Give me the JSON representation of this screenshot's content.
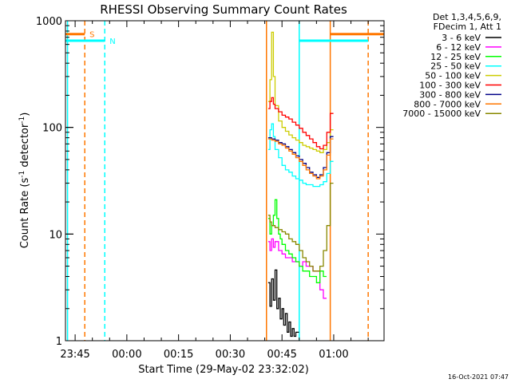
{
  "chart_data": {
    "type": "line",
    "title": "RHESSI Observing Summary Count Rates",
    "xlabel": "Start Time (29-May-02 23:32:02)",
    "ylabel_prefix": "Count Rate (s",
    "ylabel_sup1": "-1",
    "ylabel_mid": " detector",
    "ylabel_sup2": "-1",
    "ylabel_suffix": ")",
    "yscale": "log",
    "ylim": [
      1,
      1000
    ],
    "xlim_minutes": [
      -17.8,
      74.6
    ],
    "x_tick_minutes": [
      -15,
      0,
      15,
      30,
      45,
      60
    ],
    "x_tick_labels": [
      "23:45",
      "00:00",
      "00:15",
      "00:30",
      "00:45",
      "01:00"
    ],
    "y_tick_values": [
      1,
      10,
      100,
      1000
    ],
    "y_tick_labels": [
      "1",
      "10",
      "100",
      "1000"
    ],
    "timestamp": "16-Oct-2021 07:47",
    "legend_header": [
      "Det 1,3,4,5,6,9,",
      "FDecim 1, Att 1"
    ],
    "series": [
      {
        "name": "3 - 6 keV",
        "color": "#000000",
        "points": [
          [
            41.0,
            3.5
          ],
          [
            41.5,
            2.1
          ],
          [
            42.0,
            3.8
          ],
          [
            42.5,
            2.4
          ],
          [
            43.0,
            4.6
          ],
          [
            43.5,
            2.0
          ],
          [
            44.0,
            2.5
          ],
          [
            44.5,
            1.6
          ],
          [
            45.0,
            2.0
          ],
          [
            45.5,
            1.4
          ],
          [
            46.0,
            1.8
          ],
          [
            46.5,
            1.2
          ],
          [
            47.0,
            1.5
          ],
          [
            47.5,
            1.1
          ],
          [
            48.0,
            1.3
          ],
          [
            48.5,
            1.1
          ],
          [
            49.0,
            1.2
          ]
        ]
      },
      {
        "name": "6 - 12 keV",
        "color": "#ff00ff",
        "points": [
          [
            41.0,
            8.5
          ],
          [
            41.5,
            7.0
          ],
          [
            42.0,
            9.0
          ],
          [
            42.5,
            7.5
          ],
          [
            43.0,
            8.5
          ],
          [
            44.0,
            7.0
          ],
          [
            45.0,
            6.5
          ],
          [
            46.0,
            6.0
          ],
          [
            47.0,
            6.0
          ],
          [
            48.0,
            5.5
          ],
          [
            49.0,
            5.5
          ],
          [
            50.0,
            5.0
          ],
          [
            51.0,
            5.5
          ],
          [
            52.0,
            5.0
          ],
          [
            53.0,
            5.0
          ],
          [
            54.0,
            4.5
          ],
          [
            55.0,
            4.5
          ],
          [
            56.0,
            3.0
          ],
          [
            57.0,
            2.5
          ]
        ]
      },
      {
        "name": "12 - 25 keV",
        "color": "#00ff00",
        "points": [
          [
            41.0,
            14.0
          ],
          [
            41.5,
            10.0
          ],
          [
            42.0,
            12.0
          ],
          [
            42.5,
            15.0
          ],
          [
            43.0,
            21.0
          ],
          [
            43.5,
            14.0
          ],
          [
            44.0,
            10.0
          ],
          [
            44.5,
            9.0
          ],
          [
            45.0,
            8.0
          ],
          [
            46.0,
            7.0
          ],
          [
            47.0,
            6.5
          ],
          [
            48.0,
            6.0
          ],
          [
            49.0,
            5.5
          ],
          [
            50.0,
            5.0
          ],
          [
            51.0,
            4.5
          ],
          [
            52.0,
            4.5
          ],
          [
            53.0,
            4.0
          ],
          [
            54.0,
            4.0
          ],
          [
            55.0,
            3.5
          ],
          [
            56.0,
            4.5
          ],
          [
            57.0,
            4.0
          ]
        ]
      },
      {
        "name": "25 - 50 keV",
        "color": "#00ffff",
        "points": [
          [
            41.0,
            62
          ],
          [
            41.5,
            95
          ],
          [
            42.0,
            108
          ],
          [
            42.5,
            82
          ],
          [
            43.0,
            62
          ],
          [
            44.0,
            52
          ],
          [
            45.0,
            44
          ],
          [
            46.0,
            40
          ],
          [
            47.0,
            38
          ],
          [
            48.0,
            35
          ],
          [
            49.0,
            33
          ],
          [
            50.0,
            32
          ],
          [
            51.0,
            30
          ],
          [
            52.0,
            29
          ],
          [
            53.0,
            29
          ],
          [
            54.0,
            28
          ],
          [
            55.0,
            28
          ],
          [
            56.0,
            29
          ],
          [
            57.0,
            31
          ],
          [
            58.0,
            37
          ],
          [
            59.0,
            48
          ]
        ]
      },
      {
        "name": "50 - 100 keV",
        "color": "#cccc00",
        "points": [
          [
            41.0,
            175
          ],
          [
            41.5,
            280
          ],
          [
            42.0,
            780
          ],
          [
            42.5,
            300
          ],
          [
            43.0,
            160
          ],
          [
            44.0,
            115
          ],
          [
            45.0,
            100
          ],
          [
            46.0,
            92
          ],
          [
            47.0,
            85
          ],
          [
            48.0,
            80
          ],
          [
            49.0,
            76
          ],
          [
            50.0,
            72
          ],
          [
            51.0,
            68
          ],
          [
            52.0,
            66
          ],
          [
            53.0,
            64
          ],
          [
            54.0,
            62
          ],
          [
            55.0,
            60
          ],
          [
            56.0,
            58
          ],
          [
            57.0,
            62
          ],
          [
            58.0,
            72
          ],
          [
            59.0,
            95
          ]
        ]
      },
      {
        "name": "100 - 300 keV",
        "color": "#ff0000",
        "points": [
          [
            41.0,
            150
          ],
          [
            41.5,
            175
          ],
          [
            42.0,
            190
          ],
          [
            42.5,
            165
          ],
          [
            43.0,
            150
          ],
          [
            44.0,
            140
          ],
          [
            45.0,
            130
          ],
          [
            46.0,
            125
          ],
          [
            47.0,
            120
          ],
          [
            48.0,
            112
          ],
          [
            49.0,
            105
          ],
          [
            50.0,
            98
          ],
          [
            51.0,
            90
          ],
          [
            52.0,
            84
          ],
          [
            53.0,
            78
          ],
          [
            54.0,
            72
          ],
          [
            55.0,
            66
          ],
          [
            56.0,
            63
          ],
          [
            57.0,
            68
          ],
          [
            58.0,
            90
          ],
          [
            59.0,
            135
          ]
        ]
      },
      {
        "name": "300 - 800 keV",
        "color": "#000088",
        "points": [
          [
            41.0,
            80
          ],
          [
            42.0,
            78
          ],
          [
            43.0,
            76
          ],
          [
            44.0,
            72
          ],
          [
            45.0,
            70
          ],
          [
            46.0,
            66
          ],
          [
            47.0,
            62
          ],
          [
            48.0,
            58
          ],
          [
            49.0,
            54
          ],
          [
            50.0,
            50
          ],
          [
            51.0,
            46
          ],
          [
            52.0,
            42
          ],
          [
            53.0,
            38
          ],
          [
            54.0,
            36
          ],
          [
            55.0,
            34
          ],
          [
            56.0,
            36
          ],
          [
            57.0,
            42
          ],
          [
            58.0,
            58
          ],
          [
            59.0,
            82
          ]
        ]
      },
      {
        "name": "800 - 7000 keV",
        "color": "#ff7700",
        "points": [
          [
            41.0,
            78
          ],
          [
            42.0,
            76
          ],
          [
            43.0,
            74
          ],
          [
            44.0,
            70
          ],
          [
            45.0,
            68
          ],
          [
            46.0,
            64
          ],
          [
            47.0,
            60
          ],
          [
            48.0,
            56
          ],
          [
            49.0,
            52
          ],
          [
            50.0,
            48
          ],
          [
            51.0,
            44
          ],
          [
            52.0,
            40
          ],
          [
            53.0,
            37
          ],
          [
            54.0,
            35
          ],
          [
            55.0,
            33
          ],
          [
            56.0,
            35
          ],
          [
            57.0,
            40
          ],
          [
            58.0,
            55
          ],
          [
            59.0,
            78
          ]
        ]
      },
      {
        "name": "7000 - 15000 keV",
        "color": "#888800",
        "points": [
          [
            41.0,
            15.0
          ],
          [
            41.5,
            13.0
          ],
          [
            42.0,
            12.0
          ],
          [
            43.0,
            11.5
          ],
          [
            44.0,
            11.0
          ],
          [
            45.0,
            10.5
          ],
          [
            46.0,
            10.0
          ],
          [
            47.0,
            9.0
          ],
          [
            48.0,
            8.5
          ],
          [
            49.0,
            8.0
          ],
          [
            50.0,
            7.0
          ],
          [
            51.0,
            6.0
          ],
          [
            52.0,
            5.5
          ],
          [
            53.0,
            5.0
          ],
          [
            54.0,
            4.5
          ],
          [
            55.0,
            4.5
          ],
          [
            56.0,
            5.0
          ],
          [
            57.0,
            7.0
          ],
          [
            58.0,
            12.0
          ],
          [
            59.0,
            30.0
          ]
        ]
      }
    ],
    "flags": [
      {
        "label": "S",
        "color": "#ff7700",
        "level": 750,
        "segments": [
          [
            -17.8,
            -12.2
          ],
          [
            59.0,
            74.6
          ]
        ]
      },
      {
        "label": "N",
        "color": "#00ffff",
        "level": 650,
        "segments": [
          [
            -17.8,
            -6.4
          ],
          [
            50.0,
            70.0
          ]
        ]
      }
    ],
    "vlines": [
      {
        "x": -17.2,
        "color": "#00ffff",
        "dashed": false
      },
      {
        "x": -12.2,
        "color": "#ff7700",
        "dashed": true
      },
      {
        "x": -6.4,
        "color": "#00ffff",
        "dashed": true
      },
      {
        "x": 40.5,
        "color": "#ff7700",
        "dashed": false
      },
      {
        "x": 50.0,
        "color": "#00ffff",
        "dashed": false
      },
      {
        "x": 59.0,
        "color": "#ff7700",
        "dashed": false
      },
      {
        "x": 70.0,
        "color": "#ff7700",
        "dashed": true
      }
    ]
  }
}
